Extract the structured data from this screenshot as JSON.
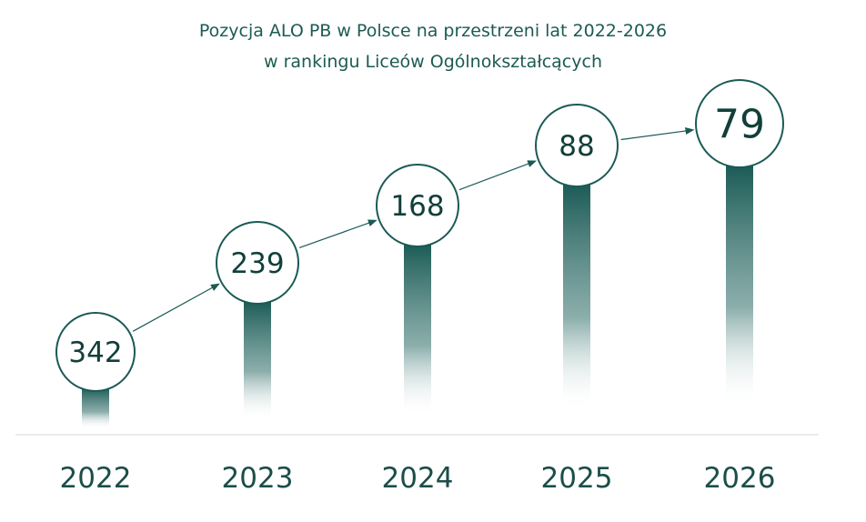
{
  "chart_data": {
    "type": "line",
    "title": "Pozycja ALO PB w Polsce na przestrzeni lat 2022-2026",
    "subtitle": "w rankingu Liceów Ogólnokształcących",
    "x": [
      "2022",
      "2023",
      "2024",
      "2025",
      "2026"
    ],
    "values": [
      342,
      239,
      168,
      88,
      79
    ],
    "y_axis": {
      "inverted": true,
      "meaning": "ranking position"
    },
    "colors": {
      "accent": "#1a5a55",
      "title": "#1c5b52",
      "value": "#123f3a",
      "year": "#1b4e49",
      "baseline": "#d9d9d9",
      "circle_fill": "#ffffff",
      "circle_stroke": "#1a5a55",
      "arrow": "#1a5a55"
    }
  }
}
